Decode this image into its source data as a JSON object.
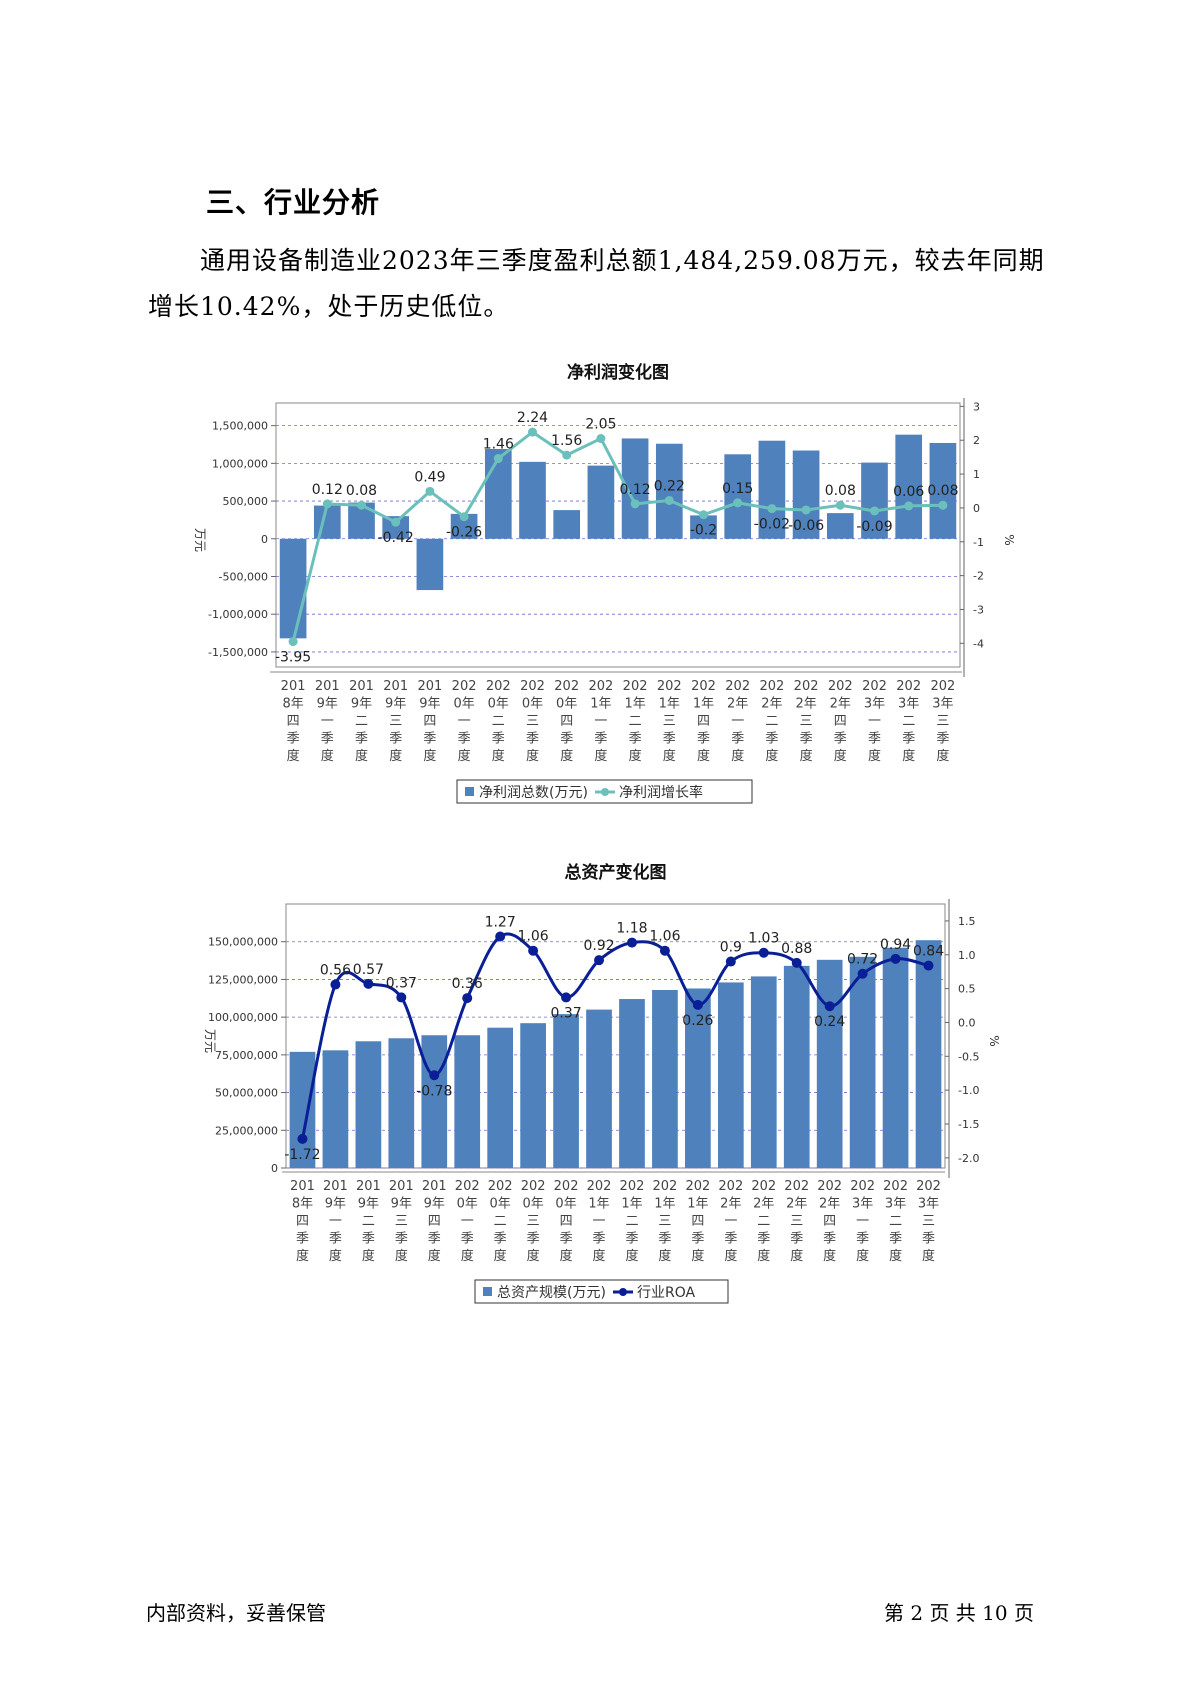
{
  "section_heading": "三、行业分析",
  "paragraph": "通用设备制造业2023年三季度盈利总额1,484,259.08万元，较去年同期增长10.42%，处于历史低位。",
  "chart_data": [
    {
      "type": "bar",
      "title": "净利润变化图",
      "categories": [
        "2018年四季度",
        "2019年一季度",
        "2019年二季度",
        "2019年三季度",
        "2019年四季度",
        "2020年一季度",
        "2020年二季度",
        "2020年三季度",
        "2020年四季度",
        "2021年一季度",
        "2021年二季度",
        "2021年三季度",
        "2021年四季度",
        "2022年一季度",
        "2022年二季度",
        "2022年三季度",
        "2022年四季度",
        "2023年一季度",
        "2023年二季度",
        "2023年三季度"
      ],
      "ylabel": "万元",
      "y2label": "%",
      "ylim": [
        -1700000,
        1800000
      ],
      "y2lim": [
        -4.7,
        3.1
      ],
      "yticks": [
        "1,500,000",
        "1,000,000",
        "500,000",
        "0",
        "-500,000",
        "-1,000,000",
        "-1,500,000"
      ],
      "y2ticks": [
        "3",
        "2",
        "1",
        "0",
        "-1",
        "-2",
        "-3",
        "-4"
      ],
      "series": [
        {
          "name": "净利润总数(万元)",
          "kind": "bar",
          "color": "#4f81bd",
          "values": [
            -1320000,
            440000,
            480000,
            300000,
            -680000,
            330000,
            1190000,
            1020000,
            380000,
            970000,
            1330000,
            1260000,
            310000,
            1120000,
            1300000,
            1170000,
            340000,
            1010000,
            1380000,
            1270000
          ]
        },
        {
          "name": "净利润增长率",
          "kind": "line",
          "color": "#6cc0bc",
          "values": [
            -3.95,
            0.12,
            0.08,
            -0.42,
            0.49,
            -0.26,
            1.46,
            2.24,
            1.56,
            2.05,
            0.12,
            0.22,
            -0.2,
            0.15,
            -0.02,
            -0.06,
            0.08,
            -0.09,
            0.06,
            0.08
          ],
          "labels": [
            "-3.95",
            "0.12",
            "0.08",
            "-0.42",
            "0.49",
            "-0.26",
            "1.46",
            "2.24",
            "1.56",
            "2.05",
            "0.12",
            "0.22",
            "-0.2",
            "0.15",
            "-0.02",
            "-0.06",
            "0.08",
            "-0.09",
            "0.06",
            "0.08"
          ]
        }
      ],
      "legend_position": "bottom",
      "grid": true
    },
    {
      "type": "bar",
      "title": "总资产变化图",
      "categories": [
        "2018年四季度",
        "2019年一季度",
        "2019年二季度",
        "2019年三季度",
        "2019年四季度",
        "2020年一季度",
        "2020年二季度",
        "2020年三季度",
        "2020年四季度",
        "2021年一季度",
        "2021年二季度",
        "2021年三季度",
        "2021年四季度",
        "2022年一季度",
        "2022年二季度",
        "2022年三季度",
        "2022年四季度",
        "2023年一季度",
        "2023年二季度",
        "2023年三季度"
      ],
      "ylabel": "万元",
      "y2label": "%",
      "ylim": [
        0,
        175000000
      ],
      "y2lim": [
        -2.15,
        1.75
      ],
      "yticks": [
        "150,000,000",
        "125,000,000",
        "100,000,000",
        "75,000,000",
        "50,000,000",
        "25,000,000",
        "0"
      ],
      "y2ticks": [
        "1.5",
        "1.0",
        "0.5",
        "0.0",
        "-0.5",
        "-1.0",
        "-1.5",
        "-2.0"
      ],
      "series": [
        {
          "name": "总资产规模(万元)",
          "kind": "bar",
          "color": "#4f81bd",
          "values": [
            77000000,
            78000000,
            84000000,
            86000000,
            88000000,
            88000000,
            93000000,
            96000000,
            102000000,
            105000000,
            112000000,
            118000000,
            119000000,
            123000000,
            127000000,
            134000000,
            138000000,
            140000000,
            146000000,
            151000000
          ]
        },
        {
          "name": "行业ROA",
          "kind": "line",
          "color": "#0a1e96",
          "values": [
            -1.72,
            0.56,
            0.57,
            0.37,
            -0.78,
            0.36,
            1.27,
            1.06,
            0.37,
            0.92,
            1.18,
            1.06,
            0.26,
            0.9,
            1.03,
            0.88,
            0.24,
            0.72,
            0.94,
            0.84
          ],
          "labels": [
            "-1.72",
            "0.56",
            "0.57",
            "0.37",
            "-0.78",
            "0.36",
            "1.27",
            "1.06",
            "0.37",
            "0.92",
            "1.18",
            "1.06",
            "0.26",
            "0.9",
            "1.03",
            "0.88",
            "0.24",
            "0.72",
            "0.94",
            "0.84"
          ]
        }
      ],
      "legend_position": "bottom",
      "grid": true
    }
  ],
  "footer": {
    "left": "内部资料，妥善保管",
    "right": "第 2 页   共 10 页"
  }
}
